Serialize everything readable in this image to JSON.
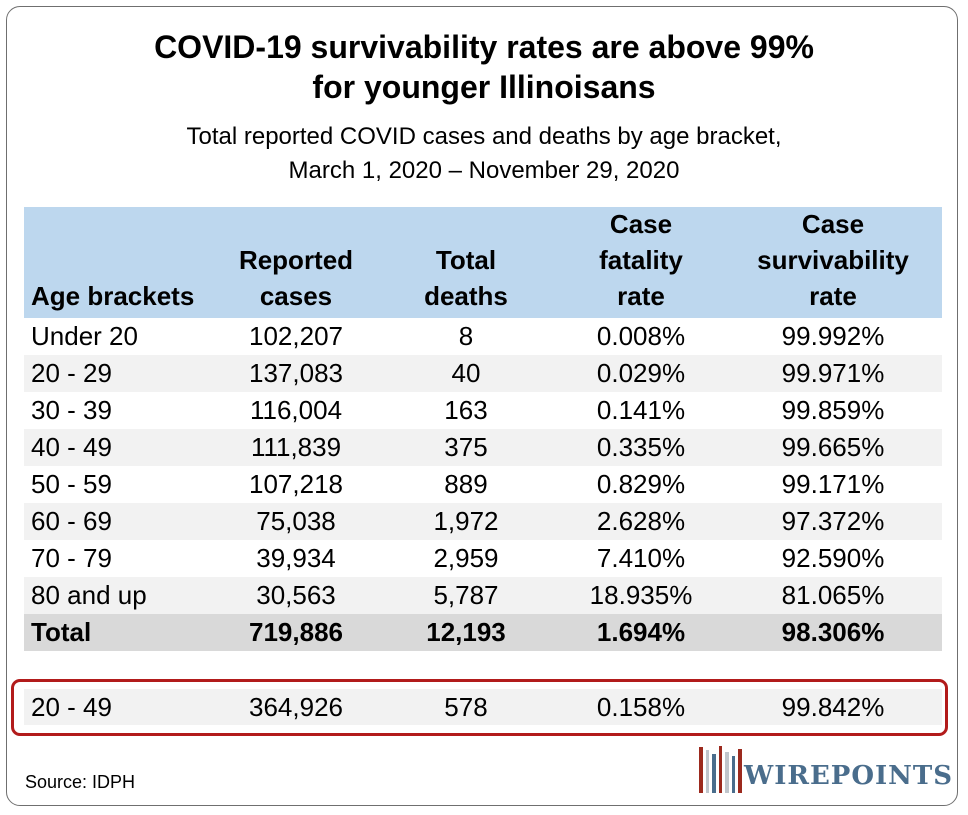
{
  "title_line1": "COVID-19 survivability rates are above 99%",
  "title_line2": "for younger Illinoisans",
  "subtitle_line1": "Total reported COVID cases and deaths by age bracket,",
  "subtitle_line2": "March 1, 2020 – November 29, 2020",
  "chart_data": {
    "type": "table",
    "columns": [
      [
        "Age brackets"
      ],
      [
        "Reported",
        "cases"
      ],
      [
        "Total",
        "deaths"
      ],
      [
        "Case",
        "fatality",
        "rate"
      ],
      [
        "Case",
        "survivability",
        "rate"
      ]
    ],
    "rows": [
      [
        "Under 20",
        "102,207",
        "8",
        "0.008%",
        "99.992%"
      ],
      [
        "20 - 29",
        "137,083",
        "40",
        "0.029%",
        "99.971%"
      ],
      [
        "30 - 39",
        "116,004",
        "163",
        "0.141%",
        "99.859%"
      ],
      [
        "40 - 49",
        "111,839",
        "375",
        "0.335%",
        "99.665%"
      ],
      [
        "50 - 59",
        "107,218",
        "889",
        "0.829%",
        "99.171%"
      ],
      [
        "60 - 69",
        "75,038",
        "1,972",
        "2.628%",
        "97.372%"
      ],
      [
        "70 - 79",
        "39,934",
        "2,959",
        "7.410%",
        "92.590%"
      ],
      [
        "80 and up",
        "30,563",
        "5,787",
        "18.935%",
        "81.065%"
      ]
    ],
    "total_row": [
      "Total",
      "719,886",
      "12,193",
      "1.694%",
      "98.306%"
    ],
    "highlight_row": [
      "20 - 49",
      "364,926",
      "578",
      "0.158%",
      "99.842%"
    ]
  },
  "source": "Source: IDPH",
  "logo": {
    "text": "WIREPOINTS"
  },
  "colors": {
    "header_bg": "#bdd7ee",
    "alt_row": "#f2f2f2",
    "total_row": "#d9d9d9",
    "highlight_border": "#b21b1b"
  }
}
